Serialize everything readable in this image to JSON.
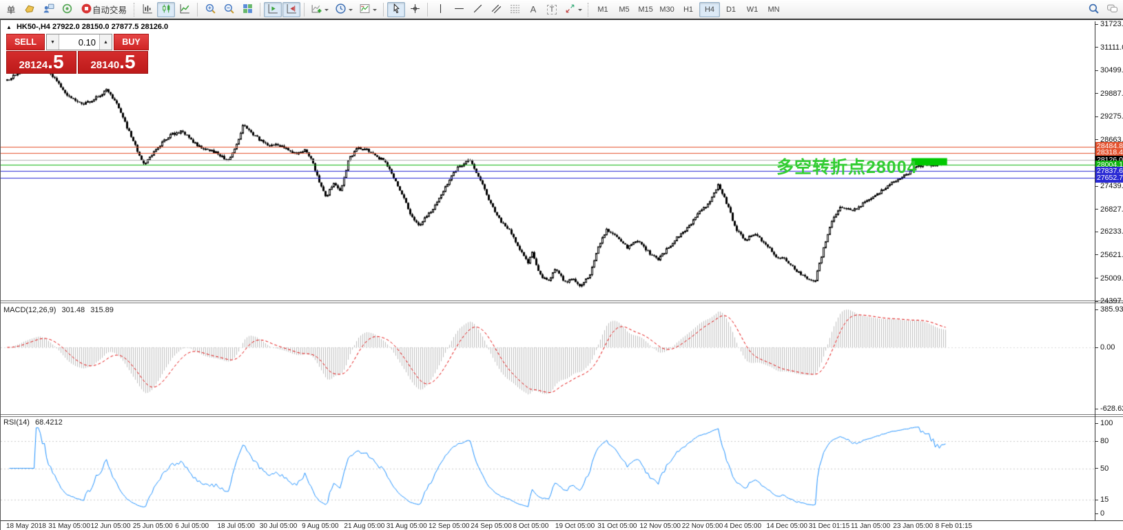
{
  "toolbar": {
    "order_label": "单",
    "autotrade_label": "自动交易",
    "tool_text": {
      "text": "A",
      "label": "T"
    },
    "timeframes": [
      "M1",
      "M5",
      "M15",
      "M30",
      "H1",
      "H4",
      "D1",
      "W1",
      "MN"
    ],
    "active_timeframe": "H4"
  },
  "chart": {
    "collapse_glyph": "▲",
    "symbol_period": "HK50-,H4",
    "ohlc": "27922.0 28150.0 27877.5 28126.0"
  },
  "trade_panel": {
    "sell_label": "SELL",
    "buy_label": "BUY",
    "volume": "0.10",
    "spin_down_glyph": "▼",
    "spin_up_glyph": "▲",
    "sell_price_main": "28124",
    "sell_price_frac": ".5",
    "buy_price_main": "28140",
    "buy_price_frac": ".5"
  },
  "price_axis": {
    "ticks": [
      "31723.0",
      "31111.0",
      "30499.0",
      "29887.0",
      "29275.0",
      "28663.0",
      "27439.0",
      "26827.0",
      "26233.0",
      "25621.0",
      "25009.0",
      "24397.0"
    ]
  },
  "levels": [
    {
      "price": 28484.8,
      "label": "28484.8",
      "color": "#e4512d"
    },
    {
      "price": 28318.4,
      "label": "28318.4",
      "color": "#e4512d"
    },
    {
      "price": 28126.0,
      "label": "28126.0",
      "color": "#000000",
      "line_color": "#b0b0b0"
    },
    {
      "price": 28004.1,
      "label": "28004.1",
      "color": "#0db30d"
    },
    {
      "price": 27837.6,
      "label": "27837.6",
      "color": "#2a2ad4"
    },
    {
      "price": 27652.7,
      "label": "27652.7",
      "color": "#2a2ad4"
    }
  ],
  "annotation": {
    "text": "多空转折点28004",
    "color": "#32cd32"
  },
  "macd_pane": {
    "label": "MACD(12,26,9)",
    "main_value": "301.48",
    "signal_value": "315.89",
    "axis": [
      "385.93",
      "0.00",
      "-628.62"
    ],
    "histogram_color": "#bdbdbd",
    "signal_color": "#e00000"
  },
  "rsi_pane": {
    "label": "RSI(14)",
    "value": "68.4212",
    "axis": [
      "100",
      "80",
      "50",
      "15",
      "0"
    ],
    "levels": [
      80,
      50,
      15
    ],
    "line_color": "#1e90ff"
  },
  "time_axis": [
    "18 May 2018",
    "31 May 05:00",
    "12 Jun 05:00",
    "25 Jun 05:00",
    "6 Jul 05:00",
    "18 Jul 05:00",
    "30 Jul 05:00",
    "9 Aug 05:00",
    "21 Aug 05:00",
    "31 Aug 05:00",
    "12 Sep 05:00",
    "24 Sep 05:00",
    "8 Oct 05:00",
    "19 Oct 05:00",
    "31 Oct 05:00",
    "12 Nov 05:00",
    "22 Nov 05:00",
    "4 Dec 05:00",
    "14 Dec 05:00",
    "31 Dec 01:15",
    "11 Jan 05:00",
    "23 Jan 05:00",
    "8 Feb 01:15"
  ],
  "chart_data": {
    "type": "candlestick",
    "symbol": "HK50-",
    "period": "H4",
    "num_candles": 455,
    "last_close": 28126.0,
    "price_scale": {
      "max": 31796,
      "min": 24417
    },
    "path": [
      [
        0,
        30250
      ],
      [
        0.016,
        30500
      ],
      [
        0.034,
        30720
      ],
      [
        0.049,
        30320
      ],
      [
        0.064,
        29860
      ],
      [
        0.081,
        29590
      ],
      [
        0.097,
        29800
      ],
      [
        0.106,
        29990
      ],
      [
        0.117,
        29600
      ],
      [
        0.132,
        28750
      ],
      [
        0.146,
        27970
      ],
      [
        0.157,
        28400
      ],
      [
        0.175,
        28800
      ],
      [
        0.186,
        28900
      ],
      [
        0.203,
        28500
      ],
      [
        0.221,
        28350
      ],
      [
        0.236,
        28100
      ],
      [
        0.247,
        28700
      ],
      [
        0.252,
        29100
      ],
      [
        0.262,
        28800
      ],
      [
        0.276,
        28550
      ],
      [
        0.293,
        28500
      ],
      [
        0.306,
        28300
      ],
      [
        0.317,
        28400
      ],
      [
        0.326,
        28050
      ],
      [
        0.333,
        27500
      ],
      [
        0.34,
        27150
      ],
      [
        0.348,
        27550
      ],
      [
        0.355,
        27300
      ],
      [
        0.364,
        28150
      ],
      [
        0.374,
        28450
      ],
      [
        0.384,
        28400
      ],
      [
        0.394,
        28200
      ],
      [
        0.403,
        28100
      ],
      [
        0.412,
        27650
      ],
      [
        0.422,
        27150
      ],
      [
        0.43,
        26700
      ],
      [
        0.439,
        26400
      ],
      [
        0.449,
        26700
      ],
      [
        0.458,
        27000
      ],
      [
        0.469,
        27500
      ],
      [
        0.479,
        27900
      ],
      [
        0.493,
        28130
      ],
      [
        0.504,
        27600
      ],
      [
        0.515,
        27000
      ],
      [
        0.526,
        26500
      ],
      [
        0.535,
        26300
      ],
      [
        0.545,
        25800
      ],
      [
        0.555,
        25400
      ],
      [
        0.56,
        25700
      ],
      [
        0.567,
        25100
      ],
      [
        0.577,
        24950
      ],
      [
        0.585,
        25250
      ],
      [
        0.594,
        24900
      ],
      [
        0.603,
        25000
      ],
      [
        0.611,
        24800
      ],
      [
        0.621,
        25100
      ],
      [
        0.631,
        25900
      ],
      [
        0.639,
        26300
      ],
      [
        0.65,
        26100
      ],
      [
        0.661,
        25800
      ],
      [
        0.672,
        26000
      ],
      [
        0.683,
        25700
      ],
      [
        0.694,
        25500
      ],
      [
        0.704,
        25800
      ],
      [
        0.714,
        26100
      ],
      [
        0.724,
        26300
      ],
      [
        0.736,
        26700
      ],
      [
        0.748,
        27000
      ],
      [
        0.758,
        27500
      ],
      [
        0.768,
        26900
      ],
      [
        0.777,
        26300
      ],
      [
        0.786,
        26000
      ],
      [
        0.797,
        26200
      ],
      [
        0.808,
        25900
      ],
      [
        0.819,
        25600
      ],
      [
        0.83,
        25500
      ],
      [
        0.841,
        25200
      ],
      [
        0.852,
        25000
      ],
      [
        0.861,
        24950
      ],
      [
        0.868,
        25600
      ],
      [
        0.878,
        26500
      ],
      [
        0.889,
        26900
      ],
      [
        0.902,
        26800
      ],
      [
        0.914,
        27000
      ],
      [
        0.927,
        27200
      ],
      [
        0.94,
        27500
      ],
      [
        0.953,
        27650
      ],
      [
        0.966,
        27900
      ],
      [
        0.978,
        28020
      ],
      [
        0.99,
        28000
      ],
      [
        1,
        28126
      ]
    ],
    "highlight_rect": {
      "f0": 0.964,
      "f1": 1.002,
      "price_top": 28180,
      "price_bottom": 27985,
      "color": "#00c800"
    },
    "indicators": [
      {
        "name": "MACD",
        "params": [
          12,
          26,
          9
        ]
      },
      {
        "name": "RSI",
        "params": [
          14
        ]
      }
    ]
  }
}
